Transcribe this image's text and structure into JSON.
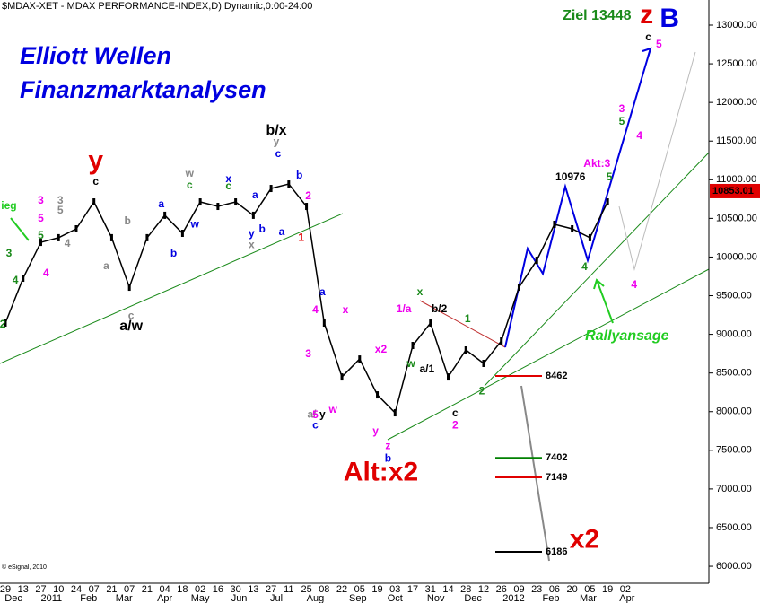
{
  "chart_data": {
    "type": "line",
    "title": "$MDAX-XET - MDAX PERFORMANCE-INDEX,D) Dynamic,0:00-24:00",
    "subtitle": [
      "Elliott Wellen",
      "Finanzmarktanalysen"
    ],
    "source": "© eSignal, 2010",
    "categories": [
      "29",
      "13",
      "27",
      "10",
      "24",
      "07",
      "21",
      "07",
      "21",
      "04",
      "18",
      "02",
      "16",
      "30",
      "13",
      "27",
      "11",
      "25",
      "08",
      "22",
      "05",
      "19",
      "03",
      "17",
      "31",
      "14",
      "28",
      "12",
      "26",
      "09",
      "23",
      "06",
      "20",
      "05",
      "19",
      "02"
    ],
    "months": [
      {
        "label": "Dec",
        "x": 0.46
      },
      {
        "label": "2011",
        "x": 2.6
      },
      {
        "label": "Feb",
        "x": 4.7
      },
      {
        "label": "Mar",
        "x": 6.7
      },
      {
        "label": "Apr",
        "x": 9.0
      },
      {
        "label": "May",
        "x": 11.0
      },
      {
        "label": "Jun",
        "x": 13.2
      },
      {
        "label": "Jul",
        "x": 15.3
      },
      {
        "label": "Aug",
        "x": 17.5
      },
      {
        "label": "Sep",
        "x": 19.9
      },
      {
        "label": "Oct",
        "x": 22.0
      },
      {
        "label": "Nov",
        "x": 24.3
      },
      {
        "label": "Dec",
        "x": 26.4
      },
      {
        "label": "2012",
        "x": 28.7
      },
      {
        "label": "Feb",
        "x": 30.8
      },
      {
        "label": "Mar",
        "x": 32.9
      },
      {
        "label": "Apr",
        "x": 35.1
      }
    ],
    "color": "#000000",
    "values": [
      9146,
      9726,
      10190,
      10250,
      10365,
      10713,
      10250,
      9610,
      10250,
      10540,
      10307,
      10713,
      10655,
      10713,
      10540,
      10887,
      10945,
      10655,
      9146,
      8449,
      8681,
      8217,
      7985,
      8856,
      9146,
      8449,
      8798,
      8624,
      8914,
      9610,
      9958,
      10423,
      10365,
      10250,
      10713,
      null
    ],
    "last_price": {
      "value": 10853.01,
      "label": "10853.01"
    },
    "ylim": [
      5780,
      13325
    ],
    "yticks": [
      {
        "value": 6000,
        "label": "6000.00"
      },
      {
        "value": 6500,
        "label": "6500.00"
      },
      {
        "value": 7000,
        "label": "7000.00"
      },
      {
        "value": 7500,
        "label": "7500.00"
      },
      {
        "value": 8000,
        "label": "8000.00"
      },
      {
        "value": 8500,
        "label": "8500.00"
      },
      {
        "value": 9000,
        "label": "9000.00"
      },
      {
        "value": 9500,
        "label": "9500.00"
      },
      {
        "value": 10000,
        "label": "10000.00"
      },
      {
        "value": 10500,
        "label": "10500.00"
      },
      {
        "value": 11000,
        "label": "11000.00"
      },
      {
        "value": 11500,
        "label": "11500.00"
      },
      {
        "value": 12000,
        "label": "12000.00"
      },
      {
        "value": 12500,
        "label": "12500.00"
      },
      {
        "value": 13000,
        "label": "13000.00"
      }
    ],
    "targets": [
      {
        "value": 8462,
        "label": "8462",
        "color": "#e00000"
      },
      {
        "value": 7402,
        "label": "7402",
        "color": "#008000"
      },
      {
        "value": 7149,
        "label": "7149",
        "color": "#e00000"
      },
      {
        "value": 6186,
        "label": "6186",
        "color": "#000000"
      }
    ],
    "big_labels": [
      {
        "text": "Ziel 13448",
        "color": "#1a8a1a",
        "x": 33.4,
        "y": 13116
      },
      {
        "text": "z",
        "color": "#e00000",
        "x": 36.2,
        "y": 13116
      },
      {
        "text": "B",
        "color": "#0000e0",
        "x": 37.5,
        "y": 13070
      },
      {
        "text": "y",
        "color": "#e00000",
        "x": 5.1,
        "y": 11230
      },
      {
        "text": "Rallyansage",
        "color": "#22cc22",
        "x": 35.1,
        "y": 8975
      },
      {
        "text": "Alt:x2",
        "color": "#e00000",
        "x": 21.2,
        "y": 7200
      },
      {
        "text": "x2",
        "color": "#e00000",
        "x": 32.7,
        "y": 6330
      },
      {
        "text": "b/x",
        "color": "#000000",
        "x": 15.3,
        "y": 11630
      },
      {
        "text": "a/w",
        "color": "#000000",
        "x": 7.1,
        "y": 9100
      }
    ],
    "wave_labels": [
      {
        "text": "c",
        "color": "#000000",
        "x": 36.3,
        "y": 12837
      },
      {
        "text": "5",
        "color": "#ee00ee",
        "x": 36.9,
        "y": 12745
      },
      {
        "text": "3",
        "color": "#ee00ee",
        "x": 34.8,
        "y": 11909
      },
      {
        "text": "5",
        "color": "#1a8a1a",
        "x": 34.8,
        "y": 11746
      },
      {
        "text": "4",
        "color": "#ee00ee",
        "x": 35.8,
        "y": 11560
      },
      {
        "text": "10976",
        "color": "#000000",
        "x": 31.9,
        "y": 11026
      },
      {
        "text": "Akt:3",
        "color": "#ee00ee",
        "x": 33.4,
        "y": 11200
      },
      {
        "text": "5",
        "color": "#1a8a1a",
        "x": 34.1,
        "y": 11026
      },
      {
        "text": "4",
        "color": "#1a8a1a",
        "x": 32.7,
        "y": 9866
      },
      {
        "text": "4",
        "color": "#ee00ee",
        "x": 35.5,
        "y": 9634
      },
      {
        "text": "y",
        "color": "#888888",
        "x": 15.3,
        "y": 11490
      },
      {
        "text": "c",
        "color": "#000000",
        "x": 5.1,
        "y": 10968
      },
      {
        "text": "c",
        "color": "#888888",
        "x": 7.1,
        "y": 9238
      },
      {
        "text": "a/",
        "color": "#888888",
        "x": 17.3,
        "y": 7960
      },
      {
        "text": "y",
        "color": "#000000",
        "x": 17.9,
        "y": 7960
      },
      {
        "text": "1/a",
        "color": "#ee00ee",
        "x": 22.5,
        "y": 9320
      },
      {
        "text": "b/2",
        "color": "#000000",
        "x": 24.5,
        "y": 9320
      },
      {
        "text": "x",
        "color": "#1a8a1a",
        "x": 23.4,
        "y": 9540
      },
      {
        "text": "1",
        "color": "#1a8a1a",
        "x": 26.1,
        "y": 9193
      },
      {
        "text": "w",
        "color": "#1a8a1a",
        "x": 22.9,
        "y": 8612
      },
      {
        "text": "a/1",
        "color": "#000000",
        "x": 23.8,
        "y": 8542
      },
      {
        "text": "z",
        "color": "#ee00ee",
        "x": 21.6,
        "y": 7555
      },
      {
        "text": "b",
        "color": "#0000e0",
        "x": 21.6,
        "y": 7392
      },
      {
        "text": "c",
        "color": "#000000",
        "x": 25.4,
        "y": 7973
      },
      {
        "text": "2",
        "color": "#ee00ee",
        "x": 25.4,
        "y": 7822
      },
      {
        "text": "2",
        "color": "#1a8a1a",
        "x": 26.9,
        "y": 8263
      },
      {
        "text": "5",
        "color": "#ee00ee",
        "x": 17.5,
        "y": 7950
      },
      {
        "text": "c",
        "color": "#0000e0",
        "x": 17.5,
        "y": 7822
      },
      {
        "text": "3",
        "color": "#ee00ee",
        "x": 17.1,
        "y": 8740
      },
      {
        "text": "4",
        "color": "#ee00ee",
        "x": 17.5,
        "y": 9308
      },
      {
        "text": "1",
        "color": "#e00000",
        "x": 16.7,
        "y": 10248
      },
      {
        "text": "2",
        "color": "#ee00ee",
        "x": 17.1,
        "y": 10783
      },
      {
        "text": "a",
        "color": "#0000e0",
        "x": 17.9,
        "y": 9541
      },
      {
        "text": "x",
        "color": "#ee00ee",
        "x": 19.2,
        "y": 9308
      },
      {
        "text": "w",
        "color": "#ee00ee",
        "x": 18.5,
        "y": 8020
      },
      {
        "text": "x2",
        "color": "#ee00ee",
        "x": 21.2,
        "y": 8798
      },
      {
        "text": "y",
        "color": "#ee00ee",
        "x": 20.9,
        "y": 7741
      },
      {
        "text": "a",
        "color": "#0000e0",
        "x": 15.6,
        "y": 10318
      },
      {
        "text": "b",
        "color": "#0000e0",
        "x": 16.6,
        "y": 11050
      },
      {
        "text": "c",
        "color": "#0000e0",
        "x": 15.4,
        "y": 11329
      },
      {
        "text": "a",
        "color": "#0000e0",
        "x": 14.1,
        "y": 10794
      },
      {
        "text": "b",
        "color": "#0000e0",
        "x": 14.5,
        "y": 10353
      },
      {
        "text": "y",
        "color": "#0000e0",
        "x": 13.9,
        "y": 10295
      },
      {
        "text": "x",
        "color": "#888888",
        "x": 13.9,
        "y": 10155
      },
      {
        "text": "x",
        "color": "#0000e0",
        "x": 12.6,
        "y": 11004
      },
      {
        "text": "c",
        "color": "#1a8a1a",
        "x": 12.6,
        "y": 10910
      },
      {
        "text": "w",
        "color": "#888888",
        "x": 10.4,
        "y": 11073
      },
      {
        "text": "c",
        "color": "#1a8a1a",
        "x": 10.4,
        "y": 10922
      },
      {
        "text": "w",
        "color": "#0000e0",
        "x": 10.7,
        "y": 10422
      },
      {
        "text": "a",
        "color": "#0000e0",
        "x": 8.8,
        "y": 10678
      },
      {
        "text": "b",
        "color": "#0000e0",
        "x": 9.5,
        "y": 10040
      },
      {
        "text": "b",
        "color": "#888888",
        "x": 6.9,
        "y": 10457
      },
      {
        "text": "a",
        "color": "#888888",
        "x": 5.7,
        "y": 9877
      },
      {
        "text": "3",
        "color": "#888888",
        "x": 3.1,
        "y": 10724
      },
      {
        "text": "5",
        "color": "#888888",
        "x": 3.1,
        "y": 10597
      },
      {
        "text": "4",
        "color": "#888888",
        "x": 3.5,
        "y": 10167
      },
      {
        "text": "3",
        "color": "#ee00ee",
        "x": 2.0,
        "y": 10724
      },
      {
        "text": "5",
        "color": "#ee00ee",
        "x": 2.0,
        "y": 10493
      },
      {
        "text": "4",
        "color": "#ee00ee",
        "x": 2.3,
        "y": 9785
      },
      {
        "text": "5",
        "color": "#1a8a1a",
        "x": 2.0,
        "y": 10272
      },
      {
        "text": "3",
        "color": "#1a8a1a",
        "x": 0.2,
        "y": 10040
      },
      {
        "text": "4",
        "color": "#1a8a1a",
        "x": 0.56,
        "y": 9692
      },
      {
        "text": "2",
        "color": "#1a8a1a",
        "x": -0.15,
        "y": 9123
      },
      {
        "text": "ieg",
        "color": "#22cc22",
        "x": 0.2,
        "y": 10655
      }
    ]
  }
}
